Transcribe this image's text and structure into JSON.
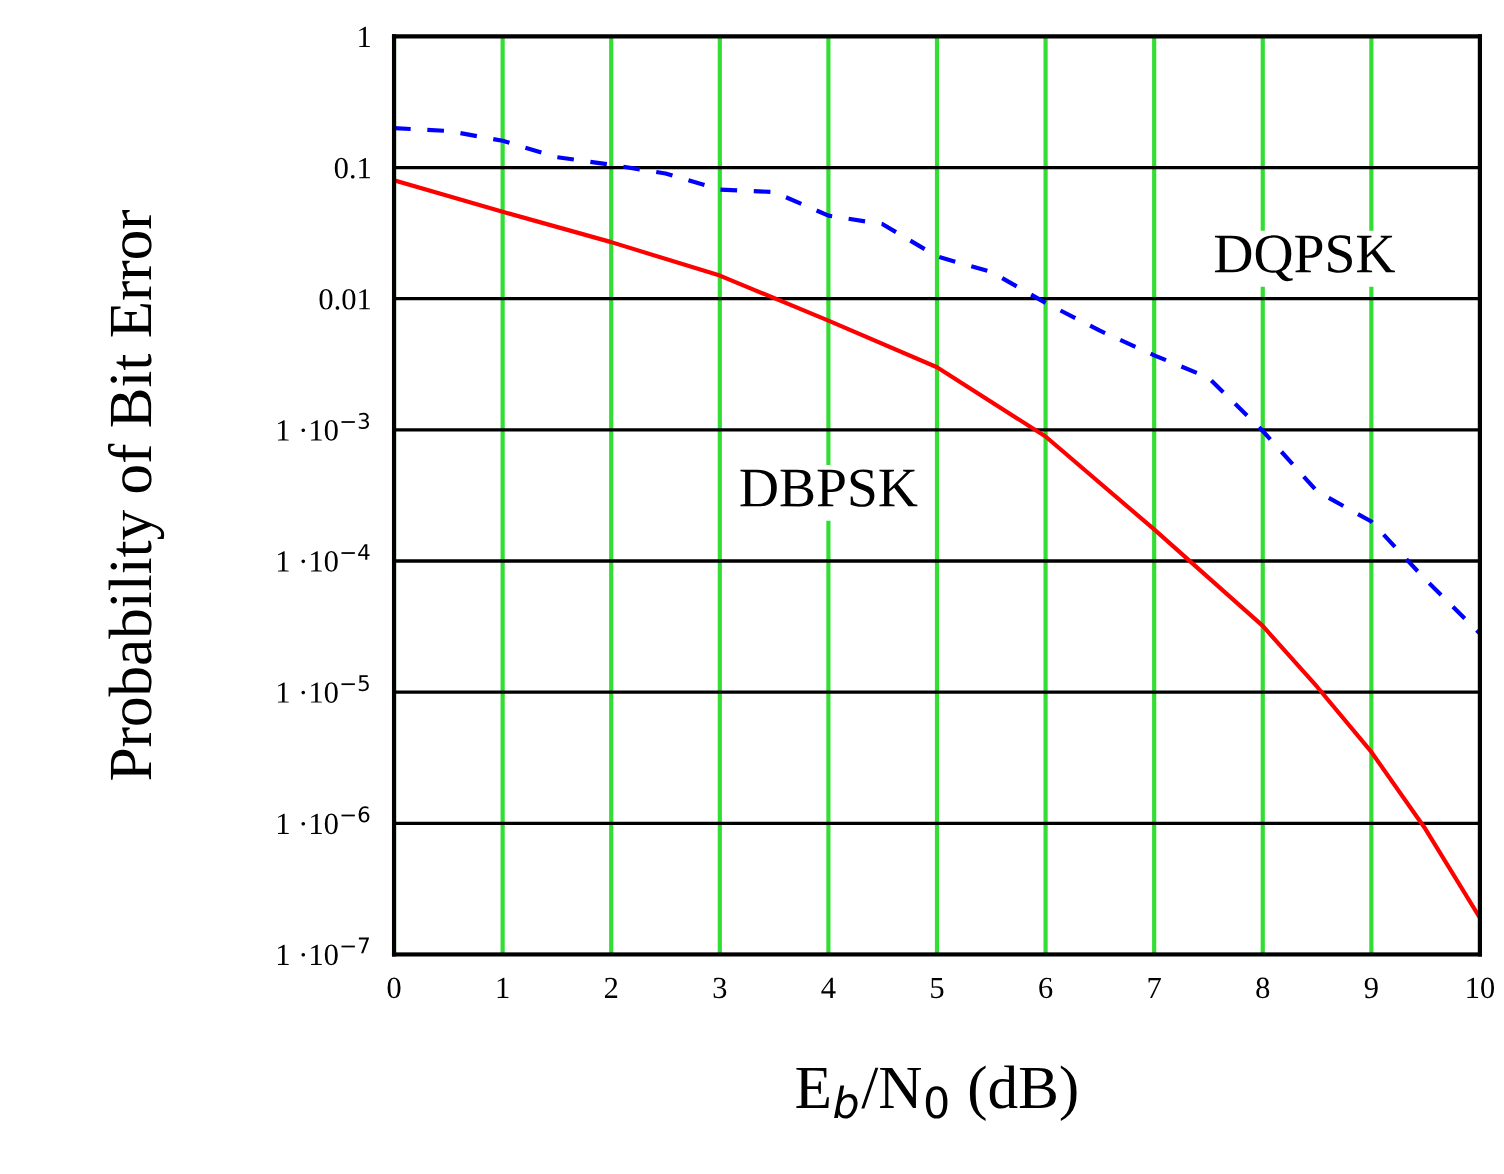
{
  "chart_data": {
    "type": "line",
    "xlabel": "E$_{b}$/N$_{0}$ (dB)",
    "ylabel": "Probability of Bit Error",
    "log": "y",
    "xlim": [
      0,
      10
    ],
    "xticks": [
      0,
      1,
      2,
      3,
      4,
      5,
      6,
      7,
      8,
      9,
      10
    ],
    "ylim": [
      1e-07,
      1
    ],
    "yticks": [
      {
        "value": 1,
        "label": "1"
      },
      {
        "value": 0.1,
        "label": "0.1"
      },
      {
        "value": 0.01,
        "label": "0.01"
      },
      {
        "value": 0.001,
        "label": "1 ·10$^{−3}$"
      },
      {
        "value": 0.0001,
        "label": "1 ·10$^{−4}$"
      },
      {
        "value": 1e-05,
        "label": "1 ·10$^{−5}$"
      },
      {
        "value": 1e-06,
        "label": "1 ·10$^{−6}$"
      },
      {
        "value": 1e-07,
        "label": "1 ·10$^{−7}$"
      }
    ],
    "grid": true,
    "series": [
      {
        "name": "DQPSK",
        "color": "#0000ff",
        "line_style": "dashed",
        "x": [
          0,
          0.5,
          1,
          1.5,
          2,
          2.5,
          3,
          3.5,
          4,
          4.5,
          5,
          5.5,
          6,
          6.5,
          7,
          7.5,
          8,
          8.5,
          9,
          9.5,
          10
        ],
        "values": [
          0.2,
          0.19,
          0.16,
          0.12,
          0.105,
          0.09,
          0.068,
          0.065,
          0.043,
          0.037,
          0.021,
          0.016,
          0.0093,
          0.0057,
          0.0037,
          0.0025,
          0.00098,
          0.00034,
          0.0002,
          7.2e-05,
          2.8e-05
        ]
      },
      {
        "name": "DBPSK",
        "color": "#ff0000",
        "line_style": "solid",
        "x": [
          0,
          1,
          2,
          3,
          4,
          5,
          6,
          7,
          8,
          8.5,
          9,
          9.5,
          10
        ],
        "values": [
          0.08,
          0.046,
          0.027,
          0.015,
          0.0068,
          0.003,
          0.00089,
          0.000174,
          3.2e-05,
          1.1e-05,
          3.5e-06,
          9e-07,
          1.9e-07
        ]
      }
    ]
  }
}
